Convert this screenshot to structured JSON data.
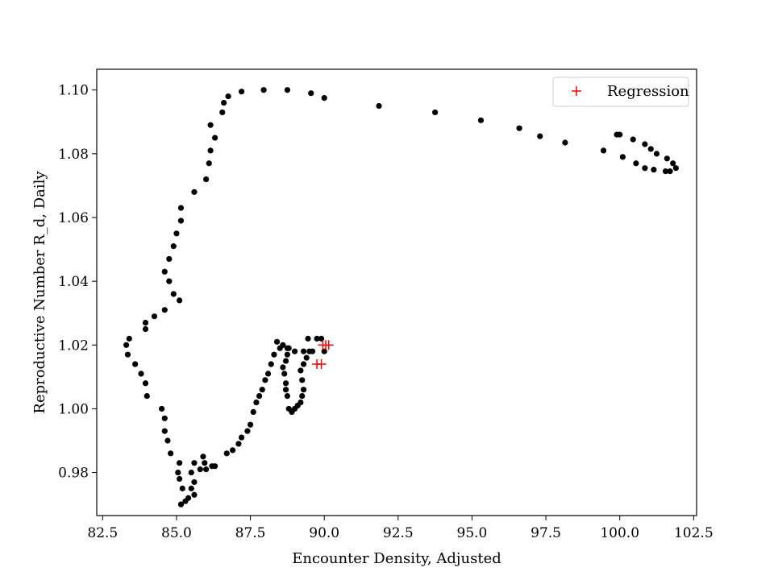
{
  "chart_data": {
    "type": "scatter",
    "xlabel": "Encounter Density, Adjusted",
    "ylabel": "Reproductive Number R_d, Daily",
    "xlim": [
      82.3,
      102.6
    ],
    "ylim": [
      0.9665,
      1.1065
    ],
    "xticks": [
      "82.5",
      "85.0",
      "87.5",
      "90.0",
      "92.5",
      "95.0",
      "97.5",
      "100.0",
      "102.5"
    ],
    "yticks": [
      "0.98",
      "1.00",
      "1.02",
      "1.04",
      "1.06",
      "1.08",
      "1.10"
    ],
    "grid": false,
    "legend_position": "top-right",
    "colors": {
      "trajectory": "#000000",
      "regression": "#ff0000"
    },
    "series": [
      {
        "marker": "dot",
        "color": "#000000",
        "points": [
          [
            90.0,
            1.018
          ],
          [
            89.6,
            1.018
          ],
          [
            89.3,
            1.018
          ],
          [
            89.0,
            1.018
          ],
          [
            88.8,
            1.019
          ],
          [
            88.6,
            1.02
          ],
          [
            88.4,
            1.021
          ],
          [
            88.5,
            1.019
          ],
          [
            88.3,
            1.017
          ],
          [
            88.2,
            1.014
          ],
          [
            88.1,
            1.011
          ],
          [
            88.0,
            1.009
          ],
          [
            87.9,
            1.006
          ],
          [
            87.8,
            1.004
          ],
          [
            87.7,
            1.002
          ],
          [
            87.6,
            0.999
          ],
          [
            87.5,
            0.995
          ],
          [
            87.4,
            0.993
          ],
          [
            87.2,
            0.991
          ],
          [
            87.1,
            0.989
          ],
          [
            86.9,
            0.987
          ],
          [
            86.7,
            0.986
          ],
          [
            86.3,
            0.982
          ],
          [
            86.2,
            0.982
          ],
          [
            85.95,
            0.983
          ],
          [
            86.0,
            0.981
          ],
          [
            85.8,
            0.981
          ],
          [
            85.9,
            0.985
          ],
          [
            85.6,
            0.983
          ],
          [
            85.5,
            0.98
          ],
          [
            85.6,
            0.977
          ],
          [
            85.5,
            0.975
          ],
          [
            85.6,
            0.973
          ],
          [
            85.4,
            0.972
          ],
          [
            85.3,
            0.971
          ],
          [
            85.15,
            0.97
          ],
          [
            85.2,
            0.975
          ],
          [
            85.1,
            0.978
          ],
          [
            85.05,
            0.98
          ],
          [
            85.1,
            0.983
          ],
          [
            84.8,
            0.986
          ],
          [
            84.7,
            0.99
          ],
          [
            84.6,
            0.993
          ],
          [
            84.6,
            0.997
          ],
          [
            84.5,
            1.0
          ],
          [
            84.0,
            1.004
          ],
          [
            83.95,
            1.008
          ],
          [
            83.8,
            1.011
          ],
          [
            83.6,
            1.014
          ],
          [
            83.35,
            1.017
          ],
          [
            83.3,
            1.02
          ],
          [
            83.4,
            1.022
          ],
          [
            83.95,
            1.025
          ],
          [
            83.95,
            1.027
          ],
          [
            84.25,
            1.029
          ],
          [
            84.6,
            1.031
          ],
          [
            85.1,
            1.034
          ],
          [
            84.9,
            1.036
          ],
          [
            84.75,
            1.04
          ],
          [
            84.6,
            1.043
          ],
          [
            84.75,
            1.047
          ],
          [
            84.9,
            1.051
          ],
          [
            85.0,
            1.055
          ],
          [
            85.15,
            1.059
          ],
          [
            85.15,
            1.063
          ],
          [
            85.6,
            1.068
          ],
          [
            86.0,
            1.072
          ],
          [
            86.1,
            1.077
          ],
          [
            86.15,
            1.081
          ],
          [
            86.3,
            1.085
          ],
          [
            86.15,
            1.089
          ],
          [
            86.55,
            1.093
          ],
          [
            86.6,
            1.096
          ],
          [
            86.75,
            1.098
          ],
          [
            87.2,
            1.0995
          ],
          [
            87.95,
            1.1
          ],
          [
            88.75,
            1.1
          ],
          [
            89.55,
            1.099
          ],
          [
            90.0,
            1.0975
          ],
          [
            91.85,
            1.095
          ],
          [
            93.75,
            1.093
          ],
          [
            95.3,
            1.0905
          ],
          [
            96.6,
            1.088
          ],
          [
            97.3,
            1.0855
          ],
          [
            98.15,
            1.0835
          ],
          [
            99.45,
            1.081
          ],
          [
            99.9,
            1.086
          ],
          [
            100.0,
            1.086
          ],
          [
            100.45,
            1.0845
          ],
          [
            100.85,
            1.083
          ],
          [
            101.05,
            1.0815
          ],
          [
            101.25,
            1.08
          ],
          [
            101.6,
            1.0785
          ],
          [
            101.8,
            1.077
          ],
          [
            101.9,
            1.0755
          ],
          [
            101.7,
            1.0745
          ],
          [
            101.55,
            1.0745
          ],
          [
            101.15,
            1.075
          ],
          [
            100.85,
            1.0755
          ],
          [
            100.55,
            1.077
          ],
          [
            100.1,
            1.079
          ],
          [
            88.8,
            1.0
          ],
          [
            88.9,
            0.999
          ],
          [
            89.0,
            1.0
          ],
          [
            89.1,
            1.001
          ],
          [
            89.2,
            1.002
          ],
          [
            89.25,
            1.004
          ],
          [
            89.3,
            1.006
          ],
          [
            89.25,
            1.009
          ],
          [
            89.2,
            1.012
          ],
          [
            89.3,
            1.014
          ],
          [
            89.4,
            1.016
          ],
          [
            89.5,
            1.018
          ],
          [
            89.45,
            1.022
          ],
          [
            89.75,
            1.022
          ],
          [
            89.9,
            1.022
          ],
          [
            88.75,
            1.004
          ],
          [
            88.7,
            1.006
          ],
          [
            88.7,
            1.008
          ],
          [
            88.65,
            1.011
          ],
          [
            88.6,
            1.013
          ],
          [
            88.7,
            1.015
          ],
          [
            88.75,
            1.017
          ],
          [
            88.75,
            1.019
          ]
        ]
      },
      {
        "name": "Regression",
        "marker": "plus",
        "color": "#ff0000",
        "points": [
          [
            89.95,
            1.02
          ],
          [
            90.05,
            1.02
          ],
          [
            90.15,
            1.02
          ],
          [
            89.75,
            1.014
          ],
          [
            89.9,
            1.014
          ]
        ]
      }
    ]
  }
}
